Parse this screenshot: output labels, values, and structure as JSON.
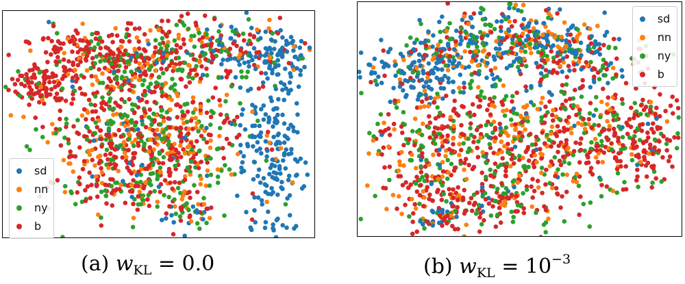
{
  "chart_data": [
    {
      "type": "scatter",
      "panel": "a",
      "caption": {
        "prefix": "(a) ",
        "var": "w",
        "sub": "KL",
        "rel": " = 0.0",
        "sup": ""
      },
      "legend": {
        "placement": "lower-left",
        "entries": [
          "sd",
          "nn",
          "ny",
          "b"
        ]
      },
      "series": [
        {
          "name": "sd",
          "color": "#1f77b4"
        },
        {
          "name": "nn",
          "color": "#ff7f0e"
        },
        {
          "name": "ny",
          "color": "#2ca02c"
        },
        {
          "name": "b",
          "color": "#d62728"
        }
      ],
      "axes": "off",
      "grid": false
    },
    {
      "type": "scatter",
      "panel": "b",
      "caption": {
        "prefix": "(b) ",
        "var": "w",
        "sub": "KL",
        "rel": " = 10",
        "sup": "−3"
      },
      "legend": {
        "placement": "top-right",
        "entries": [
          "sd",
          "nn",
          "ny",
          "b"
        ]
      },
      "series": [
        {
          "name": "sd",
          "color": "#1f77b4"
        },
        {
          "name": "nn",
          "color": "#ff7f0e"
        },
        {
          "name": "ny",
          "color": "#2ca02c"
        },
        {
          "name": "b",
          "color": "#d62728"
        }
      ],
      "axes": "off",
      "grid": false
    }
  ]
}
